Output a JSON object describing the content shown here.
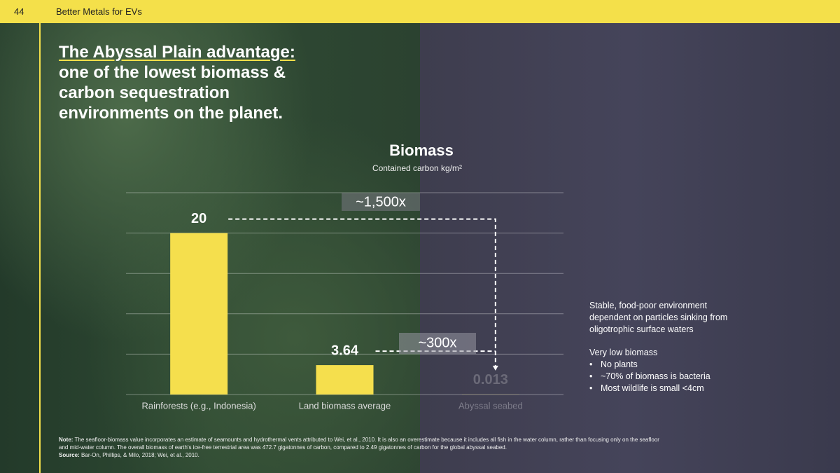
{
  "header": {
    "page": "44",
    "title": "Better Metals for EVs"
  },
  "headline": [
    "The Abyssal Plain advantage:",
    "one of the lowest biomass &",
    "carbon sequestration",
    "environments on the planet."
  ],
  "chart_data": {
    "type": "bar",
    "title": "Biomass",
    "subtitle": "Contained carbon kg/m²",
    "categories": [
      "Rainforests (e.g., Indonesia)",
      "Land biomass average",
      "Abyssal seabed"
    ],
    "values": [
      20,
      3.64,
      0.013
    ],
    "color": "#f5df4d",
    "ylim": [
      0,
      25
    ],
    "yticks": [
      0,
      5,
      10,
      15,
      20,
      25
    ],
    "grid": true,
    "annotations": [
      "~1,500x",
      "~300x"
    ]
  },
  "side_text": {
    "intro": [
      "Stable, food-poor environment",
      "dependent on particles sinking from",
      "oligotrophic surface waters"
    ],
    "heading": "Very low biomass",
    "bullets": [
      "No plants",
      "~70% of biomass is bacteria",
      "Most wildlife is small <4cm"
    ]
  },
  "footnote": {
    "note_label": "Note:",
    "note": "The seafloor-biomass value incorporates an estimate of seamounts and hydrothermal vents attributed to Wei, et al., 2010. It is also an overestimate because it includes all fish in the water column, rather than focusing only on the seafloor and mid-water column. The overall biomass of earth's ice-free terrestrial area was 472.7 gigatonnes of carbon, compared to 2.49 gigatonnes of carbon for the global abyssal seabed.",
    "source_label": "Source:",
    "source": "Bar-On, Phillips, & Milo, 2018; Wei, et al., 2010."
  }
}
